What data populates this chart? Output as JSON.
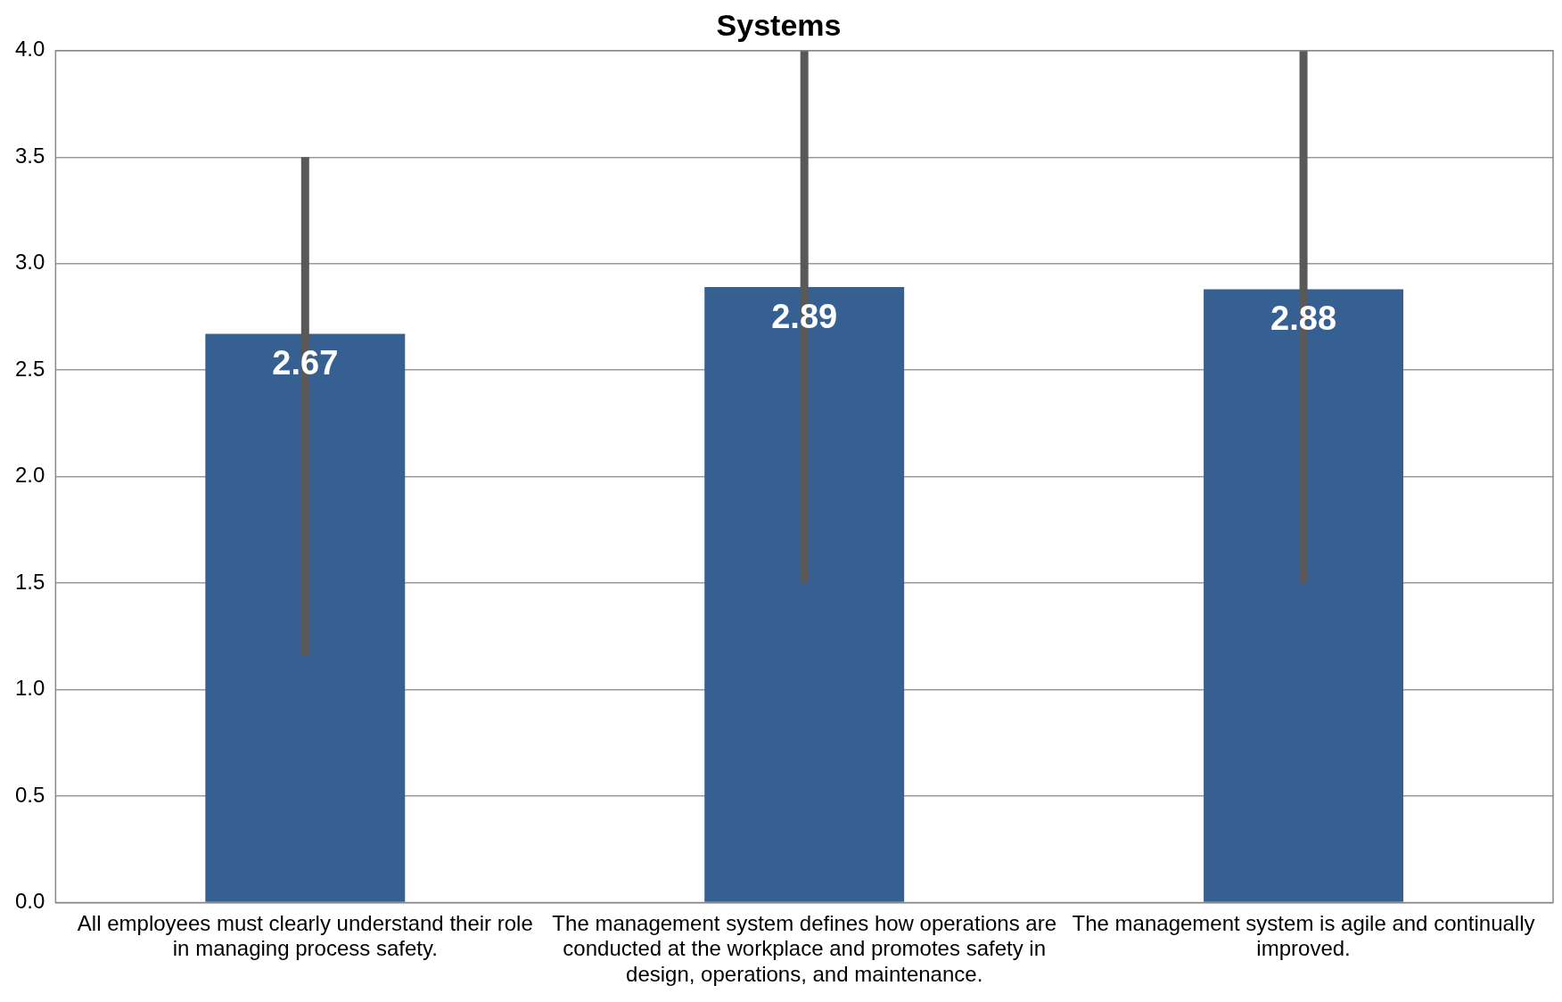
{
  "chart_data": {
    "type": "bar",
    "title": "Systems",
    "categories": [
      "All employees must clearly understand their role in managing process safety.",
      "The management system defines how operations are conducted at the workplace and promotes safety in design, operations, and maintenance.",
      "The management system is agile and continually improved."
    ],
    "values": [
      2.67,
      2.89,
      2.88
    ],
    "errors": [
      [
        1.16,
        3.5
      ],
      [
        1.5,
        4.0
      ],
      [
        1.5,
        4.0
      ]
    ],
    "color": "#366092",
    "ylim": [
      0,
      4
    ],
    "yticks": [
      {
        "value": 0,
        "label": "0.0"
      },
      {
        "value": 0.5,
        "label": "0.5"
      },
      {
        "value": 1,
        "label": "1.0"
      },
      {
        "value": 1.5,
        "label": "1.5"
      },
      {
        "value": 2,
        "label": "2.0"
      },
      {
        "value": 2.5,
        "label": "2.5"
      },
      {
        "value": 3,
        "label": "3.0"
      },
      {
        "value": 3.5,
        "label": "3.5"
      },
      {
        "value": 4,
        "label": "4.0"
      }
    ],
    "grid": "y",
    "legend": false,
    "data_labels": true
  }
}
